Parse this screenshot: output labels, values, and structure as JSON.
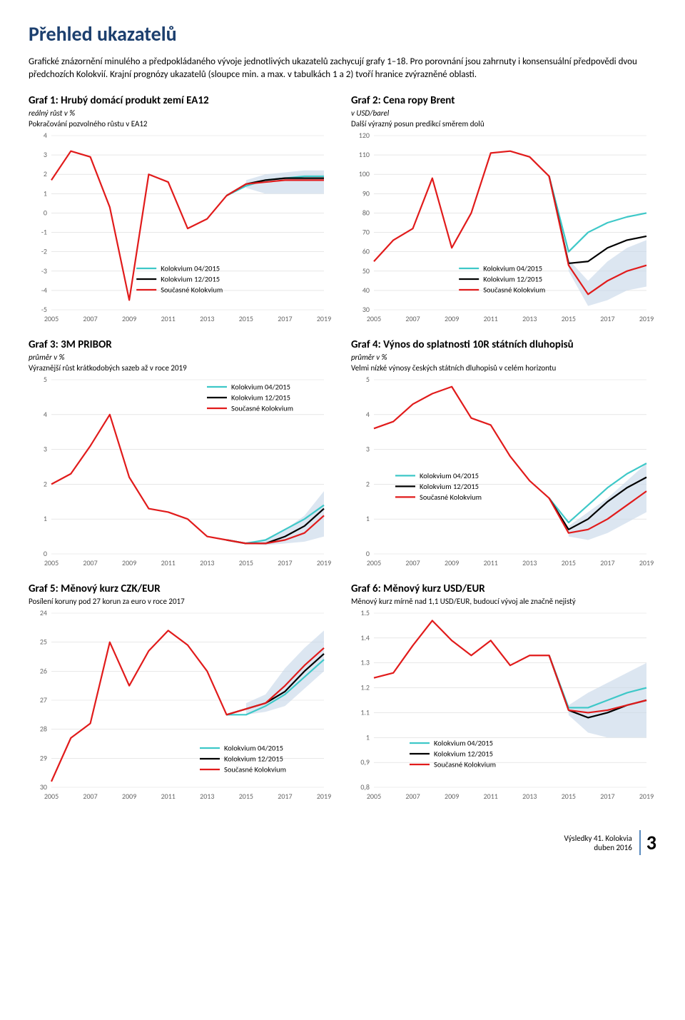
{
  "page_title": "Přehled ukazatelů",
  "intro_text": "Grafické znázornění minulého a předpokládaného vývoje jednotlivých ukazatelů zachycují grafy 1–18. Pro porovnání jsou zahrnuty i konsensuální předpovědi dvou předchozích Kolokvií. Krajní prognózy ukazatelů (sloupce min. a max. v tabulkách 1 a 2) tvoří hranice zvýrazněné oblasti.",
  "legend_labels": {
    "k04": "Kolokvium 04/2015",
    "k12": "Kolokvium 12/2015",
    "cur": "Současné Kolokvium"
  },
  "colors": {
    "k04": "#3ec8c8",
    "k12": "#000000",
    "cur": "#e11b1b",
    "band": "#c9d9ea",
    "grid": "#d9d9d9",
    "axis_text": "#666666",
    "bg": "#ffffff"
  },
  "style": {
    "line_width": 2.2,
    "grid_width": 0.6,
    "tick_fontsize": 10,
    "legend_fontsize": 10.5
  },
  "x_axis": {
    "min": 2005,
    "max": 2019,
    "ticks": [
      2005,
      2007,
      2009,
      2011,
      2013,
      2015,
      2017,
      2019
    ]
  },
  "charts": [
    {
      "id": "g1",
      "title": "Graf 1: Hrubý domácí produkt zemí EA12",
      "sub": "reálný růst v %",
      "desc": "Pokračování pozvolného růstu v EA12",
      "legend_pos": "bottom-center",
      "y": {
        "min": -5,
        "max": 4,
        "ticks": [
          -5,
          -4,
          -3,
          -2,
          -1,
          0,
          1,
          2,
          3,
          4
        ]
      },
      "series": {
        "cur": {
          "x": [
            2005,
            2006,
            2007,
            2008,
            2009,
            2010,
            2011,
            2012,
            2013,
            2014,
            2015,
            2016,
            2017,
            2018,
            2019
          ],
          "y": [
            1.7,
            3.2,
            2.9,
            0.3,
            -4.5,
            2.0,
            1.6,
            -0.8,
            -0.3,
            0.9,
            1.5,
            1.6,
            1.7,
            1.7,
            1.7
          ]
        },
        "k12": {
          "x": [
            2014,
            2015,
            2016,
            2017,
            2018,
            2019
          ],
          "y": [
            0.9,
            1.5,
            1.7,
            1.8,
            1.8,
            1.8
          ]
        },
        "k04": {
          "x": [
            2014,
            2015,
            2016,
            2017,
            2018,
            2019
          ],
          "y": [
            0.9,
            1.4,
            1.7,
            1.8,
            1.9,
            1.9
          ]
        }
      },
      "band": {
        "x": [
          2015,
          2016,
          2017,
          2018,
          2019
        ],
        "low": [
          1.3,
          1.0,
          1.0,
          1.0,
          1.0
        ],
        "high": [
          1.7,
          2.0,
          2.1,
          2.2,
          2.2
        ]
      }
    },
    {
      "id": "g2",
      "title": "Graf 2: Cena ropy Brent",
      "sub": "v USD/barel",
      "desc": "Další výrazný posun predikcí směrem dolů",
      "legend_pos": "bottom-center",
      "y": {
        "min": 30,
        "max": 120,
        "ticks": [
          30,
          40,
          50,
          60,
          70,
          80,
          90,
          100,
          110,
          120
        ]
      },
      "series": {
        "cur": {
          "x": [
            2005,
            2006,
            2007,
            2008,
            2009,
            2010,
            2011,
            2012,
            2013,
            2014,
            2015,
            2016,
            2017,
            2018,
            2019
          ],
          "y": [
            55,
            66,
            72,
            98,
            62,
            80,
            111,
            112,
            109,
            99,
            53,
            38,
            45,
            50,
            53
          ]
        },
        "k12": {
          "x": [
            2014,
            2015,
            2016,
            2017,
            2018,
            2019
          ],
          "y": [
            99,
            54,
            55,
            62,
            66,
            68
          ]
        },
        "k04": {
          "x": [
            2014,
            2015,
            2016,
            2017,
            2018,
            2019
          ],
          "y": [
            99,
            60,
            70,
            75,
            78,
            80
          ]
        }
      },
      "band": {
        "x": [
          2015,
          2016,
          2017,
          2018,
          2019
        ],
        "low": [
          50,
          32,
          35,
          40,
          42
        ],
        "high": [
          56,
          45,
          55,
          62,
          66
        ]
      }
    },
    {
      "id": "g3",
      "title": "Graf 3: 3M PRIBOR",
      "sub": "průměr v %",
      "desc": "Výraznější růst krátkodobých sazeb až v roce 2019",
      "legend_pos": "top-right",
      "y": {
        "min": 0,
        "max": 5,
        "ticks": [
          0,
          1,
          2,
          3,
          4,
          5
        ]
      },
      "series": {
        "cur": {
          "x": [
            2005,
            2006,
            2007,
            2008,
            2009,
            2010,
            2011,
            2012,
            2013,
            2014,
            2015,
            2016,
            2017,
            2018,
            2019
          ],
          "y": [
            2.0,
            2.3,
            3.1,
            4.0,
            2.2,
            1.3,
            1.2,
            1.0,
            0.5,
            0.4,
            0.3,
            0.3,
            0.4,
            0.6,
            1.1
          ]
        },
        "k12": {
          "x": [
            2014,
            2015,
            2016,
            2017,
            2018,
            2019
          ],
          "y": [
            0.4,
            0.3,
            0.3,
            0.5,
            0.8,
            1.3
          ]
        },
        "k04": {
          "x": [
            2014,
            2015,
            2016,
            2017,
            2018,
            2019
          ],
          "y": [
            0.4,
            0.3,
            0.4,
            0.7,
            1.0,
            1.4
          ]
        }
      },
      "band": {
        "x": [
          2015,
          2016,
          2017,
          2018,
          2019
        ],
        "low": [
          0.3,
          0.25,
          0.3,
          0.35,
          0.5
        ],
        "high": [
          0.35,
          0.4,
          0.7,
          1.1,
          1.8
        ]
      }
    },
    {
      "id": "g4",
      "title": "Graf 4: Výnos do splatnosti 10R státních dluhopisů",
      "sub": "průměr v %",
      "desc": "Velmi nízké výnosy českých státních dluhopisů v celém horizontu",
      "legend_pos": "mid-left",
      "y": {
        "min": 0,
        "max": 5,
        "ticks": [
          0,
          1,
          2,
          3,
          4,
          5
        ]
      },
      "series": {
        "cur": {
          "x": [
            2005,
            2006,
            2007,
            2008,
            2009,
            2010,
            2011,
            2012,
            2013,
            2014,
            2015,
            2016,
            2017,
            2018,
            2019
          ],
          "y": [
            3.6,
            3.8,
            4.3,
            4.6,
            4.8,
            3.9,
            3.7,
            2.8,
            2.1,
            1.6,
            0.6,
            0.7,
            1.0,
            1.4,
            1.8
          ]
        },
        "k12": {
          "x": [
            2014,
            2015,
            2016,
            2017,
            2018,
            2019
          ],
          "y": [
            1.6,
            0.7,
            1.0,
            1.5,
            1.9,
            2.2
          ]
        },
        "k04": {
          "x": [
            2014,
            2015,
            2016,
            2017,
            2018,
            2019
          ],
          "y": [
            1.6,
            0.9,
            1.4,
            1.9,
            2.3,
            2.6
          ]
        }
      },
      "band": {
        "x": [
          2015,
          2016,
          2017,
          2018,
          2019
        ],
        "low": [
          0.5,
          0.4,
          0.6,
          0.9,
          1.2
        ],
        "high": [
          0.8,
          1.2,
          1.6,
          2.1,
          2.6
        ]
      }
    },
    {
      "id": "g5",
      "title": "Graf 5: Měnový kurz CZK/EUR",
      "sub": "",
      "desc": "Posílení koruny pod 27 korun za euro v roce 2017",
      "legend_pos": "bottom-right",
      "y": {
        "min": 30,
        "max": 24,
        "ticks": [
          24,
          25,
          26,
          27,
          28,
          29,
          30
        ],
        "inverted": true
      },
      "series": {
        "cur": {
          "x": [
            2005,
            2006,
            2007,
            2008,
            2009,
            2010,
            2011,
            2012,
            2013,
            2014,
            2015,
            2016,
            2017,
            2018,
            2019
          ],
          "y": [
            29.8,
            28.3,
            27.8,
            25.0,
            26.5,
            25.3,
            24.6,
            25.1,
            26.0,
            27.5,
            27.3,
            27.1,
            26.5,
            25.8,
            25.2
          ]
        },
        "k12": {
          "x": [
            2014,
            2015,
            2016,
            2017,
            2018,
            2019
          ],
          "y": [
            27.5,
            27.3,
            27.1,
            26.7,
            26.0,
            25.4
          ]
        },
        "k04": {
          "x": [
            2014,
            2015,
            2016,
            2017,
            2018,
            2019
          ],
          "y": [
            27.5,
            27.5,
            27.2,
            26.8,
            26.2,
            25.6
          ]
        }
      },
      "band": {
        "x": [
          2015,
          2016,
          2017,
          2018,
          2019
        ],
        "low": [
          27.5,
          27.4,
          27.2,
          26.6,
          26.0
        ],
        "high": [
          27.1,
          26.8,
          25.9,
          25.2,
          24.6
        ]
      }
    },
    {
      "id": "g6",
      "title": "Graf 6: Měnový kurz USD/EUR",
      "sub": "",
      "desc": "Měnový kurz mírně nad 1,1 USD/EUR, budoucí vývoj ale značně nejistý",
      "legend_pos": "bottom-right-low",
      "y": {
        "min": 0.8,
        "max": 1.5,
        "ticks": [
          0.8,
          0.9,
          1.0,
          1.1,
          1.2,
          1.3,
          1.4,
          1.5
        ]
      },
      "series": {
        "cur": {
          "x": [
            2005,
            2006,
            2007,
            2008,
            2009,
            2010,
            2011,
            2012,
            2013,
            2014,
            2015,
            2016,
            2017,
            2018,
            2019
          ],
          "y": [
            1.24,
            1.26,
            1.37,
            1.47,
            1.39,
            1.33,
            1.39,
            1.29,
            1.33,
            1.33,
            1.11,
            1.1,
            1.11,
            1.13,
            1.15
          ]
        },
        "k12": {
          "x": [
            2014,
            2015,
            2016,
            2017,
            2018,
            2019
          ],
          "y": [
            1.33,
            1.11,
            1.08,
            1.1,
            1.13,
            1.15
          ]
        },
        "k04": {
          "x": [
            2014,
            2015,
            2016,
            2017,
            2018,
            2019
          ],
          "y": [
            1.33,
            1.12,
            1.12,
            1.15,
            1.18,
            1.2
          ]
        }
      },
      "band": {
        "x": [
          2015,
          2016,
          2017,
          2018,
          2019
        ],
        "low": [
          1.09,
          1.02,
          1.0,
          1.0,
          1.0
        ],
        "high": [
          1.13,
          1.18,
          1.22,
          1.26,
          1.3
        ]
      }
    }
  ],
  "footer": {
    "line1": "Výsledky 41. Kolokvia",
    "line2": "duben 2016",
    "page": "3"
  }
}
